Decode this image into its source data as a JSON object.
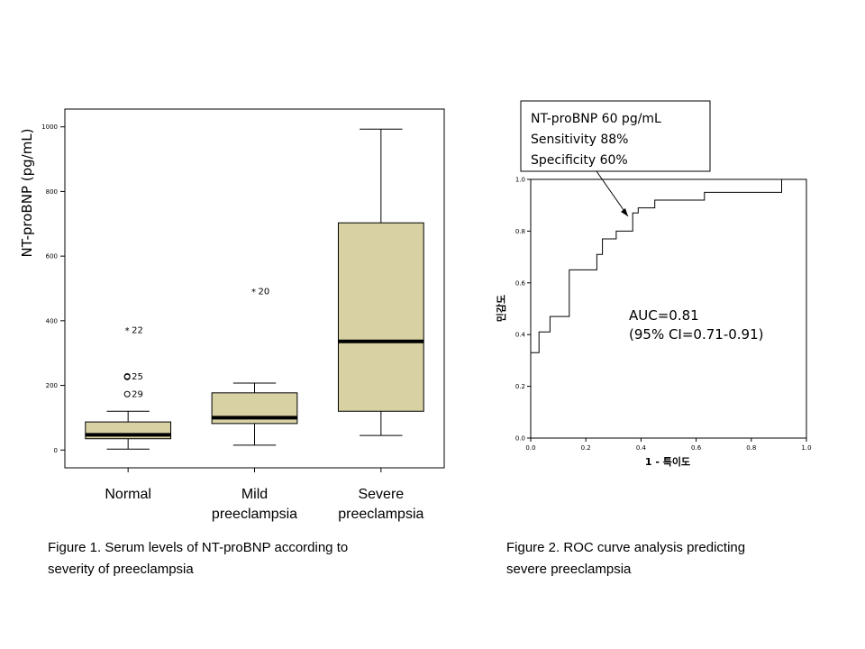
{
  "chart_data": [
    {
      "type": "box",
      "ylabel": "NT-proBNP (pg/mL)",
      "ylim": [
        -55,
        1055
      ],
      "yticks": [
        0,
        200,
        400,
        600,
        800,
        1000
      ],
      "ytick_labels": [
        "0",
        "200",
        "400",
        "600",
        "800",
        "1000"
      ],
      "categories": [
        "Normal",
        "Mild\npreeclampsia",
        "Severe\npreeclampsia"
      ],
      "category_lines": [
        [
          "Normal"
        ],
        [
          "Mild",
          "preeclampsia"
        ],
        [
          "Severe",
          "preeclampsia"
        ]
      ],
      "box_color": "#d7d1a3",
      "boxes": [
        {
          "min": 3,
          "q1": 35,
          "median": 47,
          "q3": 87,
          "max": 120,
          "outliers": [
            {
              "value": 372,
              "marker": "*",
              "label": "22"
            },
            {
              "value": 228,
              "marker": "o",
              "label": "25"
            },
            {
              "value": 226,
              "marker": "o",
              "label": ""
            },
            {
              "value": 173,
              "marker": "o",
              "label": "29"
            }
          ]
        },
        {
          "min": 15,
          "q1": 82,
          "median": 100,
          "q3": 177,
          "max": 207,
          "outliers": [
            {
              "value": 491,
              "marker": "*",
              "label": "20"
            }
          ]
        },
        {
          "min": 45,
          "q1": 120,
          "median": 336,
          "q3": 703,
          "max": 993,
          "outliers": []
        }
      ],
      "caption_lines": [
        "Figure 1. Serum levels of NT-proBNP according to",
        "severity of preeclampsia"
      ]
    },
    {
      "type": "line",
      "xlabel": "1 - 특이도",
      "ylabel": "민감도",
      "xlim": [
        0,
        1
      ],
      "ylim": [
        0,
        1
      ],
      "ticks": [
        "0.0",
        "0.2",
        "0.4",
        "0.6",
        "0.8",
        "1.0"
      ],
      "roc_points": [
        [
          0.0,
          0.0
        ],
        [
          0.0,
          0.33
        ],
        [
          0.03,
          0.33
        ],
        [
          0.03,
          0.41
        ],
        [
          0.07,
          0.41
        ],
        [
          0.07,
          0.47
        ],
        [
          0.14,
          0.47
        ],
        [
          0.14,
          0.65
        ],
        [
          0.24,
          0.65
        ],
        [
          0.24,
          0.71
        ],
        [
          0.26,
          0.71
        ],
        [
          0.26,
          0.77
        ],
        [
          0.31,
          0.77
        ],
        [
          0.31,
          0.8
        ],
        [
          0.37,
          0.8
        ],
        [
          0.37,
          0.87
        ],
        [
          0.39,
          0.87
        ],
        [
          0.39,
          0.89
        ],
        [
          0.45,
          0.89
        ],
        [
          0.45,
          0.92
        ],
        [
          0.63,
          0.92
        ],
        [
          0.63,
          0.95
        ],
        [
          0.91,
          0.95
        ],
        [
          0.91,
          1.0
        ],
        [
          1.0,
          1.0
        ]
      ],
      "arrow_point": [
        0.37,
        0.86
      ],
      "callout_lines": [
        "NT-proBNP 60 pg/mL",
        "Sensitivity 88%",
        "Specificity 60%"
      ],
      "auc_lines": [
        "AUC=0.81",
        "(95% CI=0.71-0.91)"
      ],
      "caption_lines": [
        "Figure 2. ROC curve analysis predicting",
        "severe preeclampsia"
      ]
    }
  ]
}
